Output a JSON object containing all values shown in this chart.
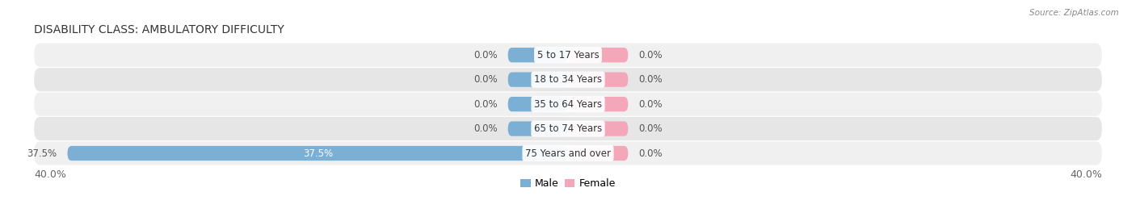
{
  "title": "DISABILITY CLASS: AMBULATORY DIFFICULTY",
  "source": "Source: ZipAtlas.com",
  "categories": [
    "5 to 17 Years",
    "18 to 34 Years",
    "35 to 64 Years",
    "65 to 74 Years",
    "75 Years and over"
  ],
  "male_values": [
    0.0,
    0.0,
    0.0,
    0.0,
    37.5
  ],
  "female_values": [
    0.0,
    0.0,
    0.0,
    0.0,
    0.0
  ],
  "male_color": "#7bafd4",
  "female_color": "#f4a7b9",
  "max_val": 40.0,
  "x_left_label": "40.0%",
  "x_right_label": "40.0%",
  "title_fontsize": 10,
  "label_fontsize": 8.5,
  "tick_fontsize": 9,
  "bar_height": 0.6,
  "min_bar_width": 4.5,
  "figsize": [
    14.06,
    2.69
  ],
  "dpi": 100,
  "row_bg_even": "#f0f0f0",
  "row_bg_odd": "#e6e6e6"
}
